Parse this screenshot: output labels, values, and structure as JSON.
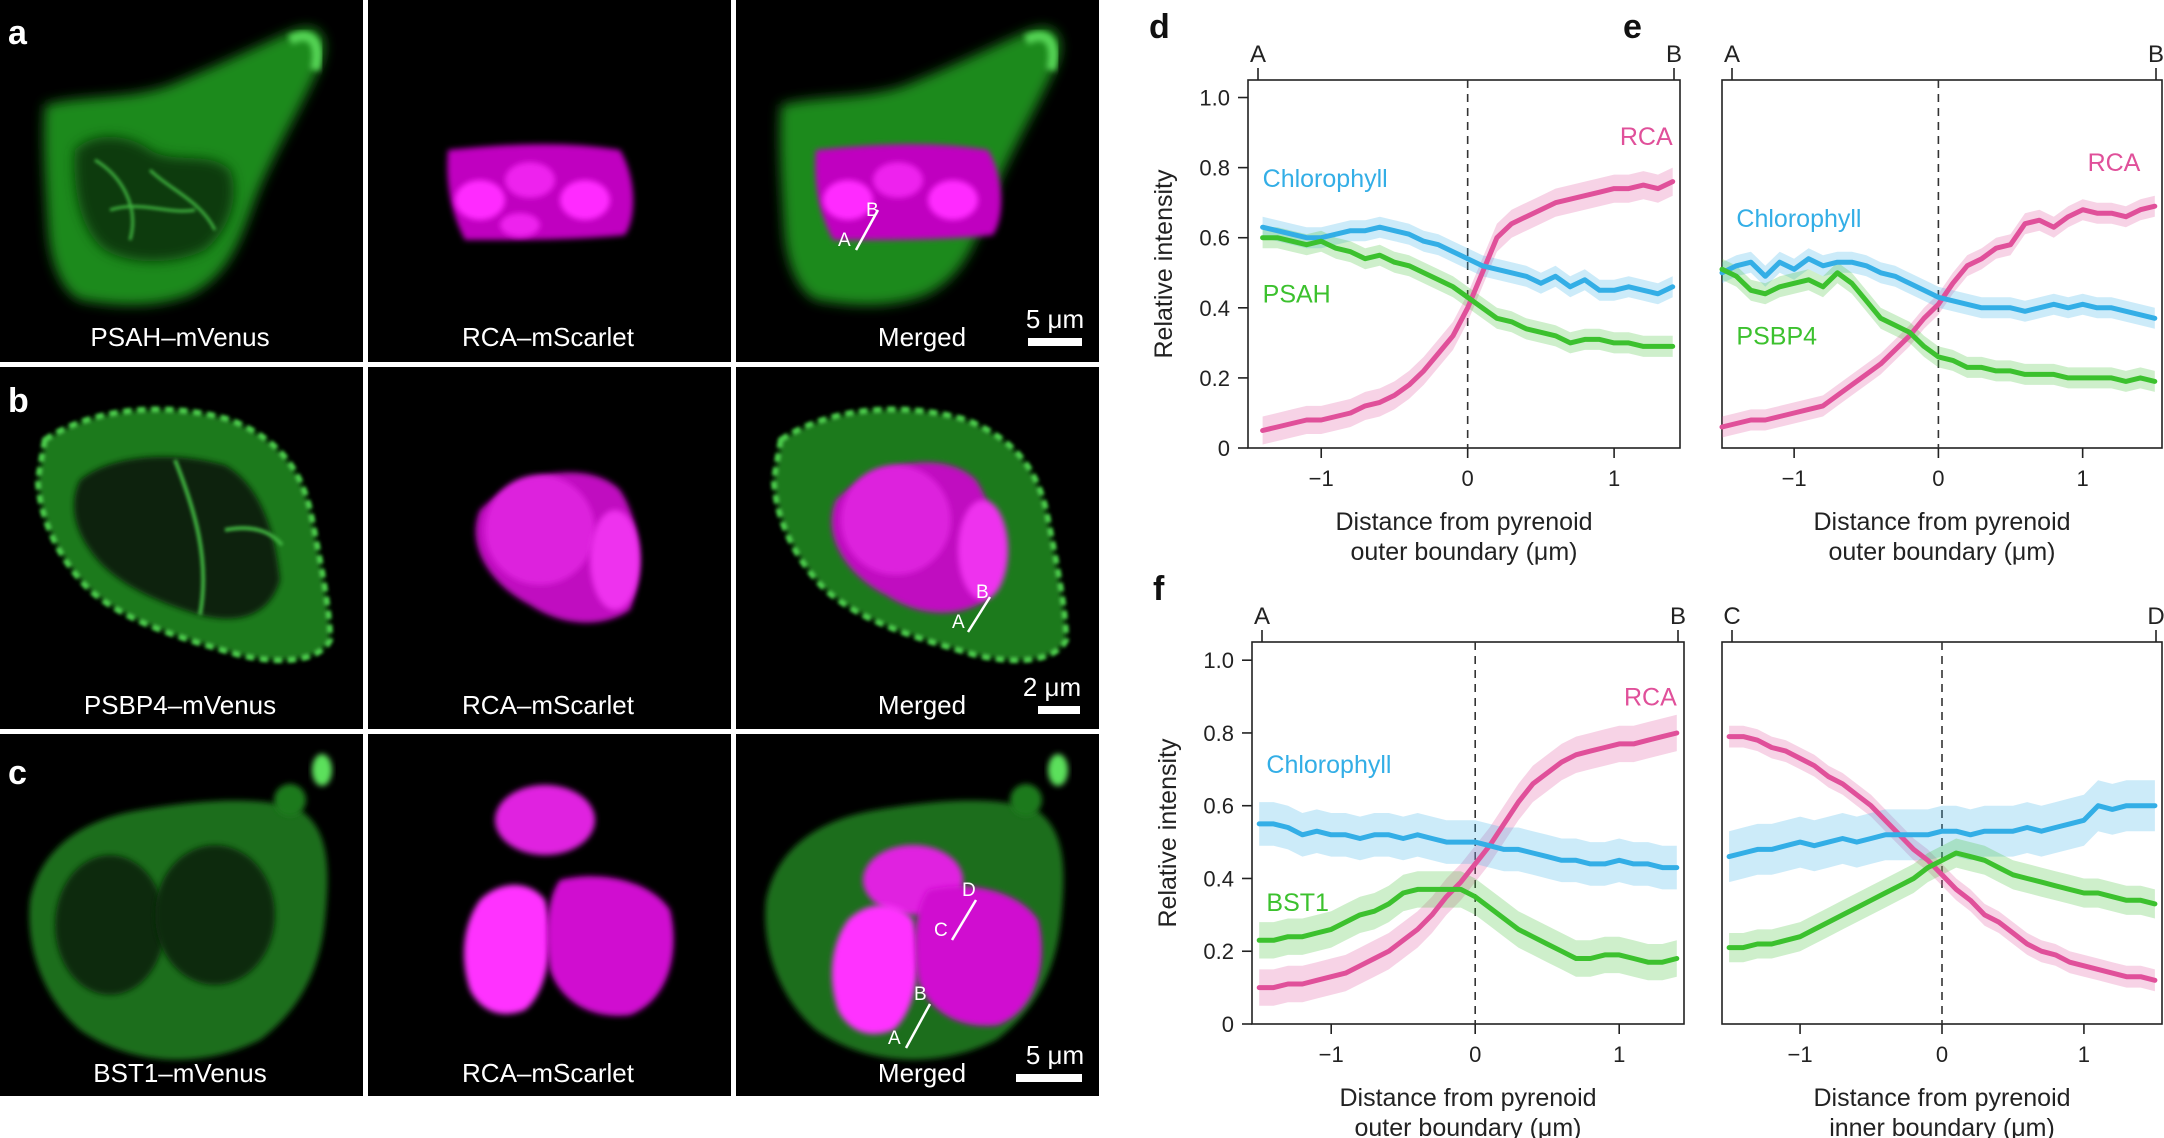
{
  "figure": {
    "rows": [
      {
        "letter": "a",
        "captions": [
          "PSAH–mVenus",
          "RCA–mScarlet",
          "Merged"
        ],
        "scale_bar": "5 μm",
        "line_labels": [
          "A",
          "B"
        ]
      },
      {
        "letter": "b",
        "captions": [
          "PSBP4–mVenus",
          "RCA–mScarlet",
          "Merged"
        ],
        "scale_bar": "2 μm",
        "line_labels": [
          "A",
          "B"
        ]
      },
      {
        "letter": "c",
        "captions": [
          "BST1–mVenus",
          "RCA–mScarlet",
          "Merged"
        ],
        "scale_bar": "5 μm",
        "line_labels": [
          "A",
          "B",
          "C",
          "D"
        ]
      }
    ]
  },
  "colors": {
    "rca": "#e0509a",
    "chlorophyll": "#33aee6",
    "marker": "#3cc12e"
  },
  "chart_data": [
    {
      "id": "d",
      "letter": "d",
      "type": "line",
      "ylabel": "Relative intensity",
      "xlabel": [
        "Distance from pyrenoid",
        "outer boundary (μm)"
      ],
      "xlim": [
        -1.5,
        1.45
      ],
      "ylim": [
        0,
        1.05
      ],
      "xticks": [
        "−1",
        "0",
        "1"
      ],
      "yticks": [
        "0",
        "0.2",
        "0.4",
        "0.6",
        "0.8",
        "1.0"
      ],
      "end_labels": [
        "A",
        "B"
      ],
      "x": [
        -1.4,
        -1.3,
        -1.2,
        -1.1,
        -1.0,
        -0.9,
        -0.8,
        -0.7,
        -0.6,
        -0.5,
        -0.4,
        -0.3,
        -0.2,
        -0.1,
        0.0,
        0.1,
        0.2,
        0.3,
        0.4,
        0.5,
        0.6,
        0.7,
        0.8,
        0.9,
        1.0,
        1.1,
        1.2,
        1.3,
        1.4
      ],
      "series": [
        {
          "name": "RCA",
          "color": "#e0509a",
          "band": 0.04,
          "values": [
            0.05,
            0.06,
            0.07,
            0.08,
            0.08,
            0.09,
            0.1,
            0.12,
            0.13,
            0.15,
            0.18,
            0.22,
            0.27,
            0.32,
            0.4,
            0.5,
            0.6,
            0.64,
            0.66,
            0.68,
            0.7,
            0.71,
            0.72,
            0.73,
            0.74,
            0.74,
            0.75,
            0.74,
            0.76
          ]
        },
        {
          "name": "Chlorophyll",
          "color": "#33aee6",
          "band": 0.03,
          "values": [
            0.63,
            0.62,
            0.61,
            0.6,
            0.6,
            0.61,
            0.62,
            0.62,
            0.63,
            0.62,
            0.61,
            0.59,
            0.58,
            0.56,
            0.54,
            0.52,
            0.51,
            0.5,
            0.49,
            0.47,
            0.49,
            0.46,
            0.48,
            0.45,
            0.45,
            0.46,
            0.45,
            0.44,
            0.46
          ]
        },
        {
          "name": "PSAH",
          "color": "#3cc12e",
          "band": 0.03,
          "values": [
            0.6,
            0.6,
            0.59,
            0.58,
            0.59,
            0.57,
            0.56,
            0.54,
            0.55,
            0.53,
            0.52,
            0.5,
            0.48,
            0.46,
            0.43,
            0.4,
            0.37,
            0.36,
            0.34,
            0.33,
            0.32,
            0.3,
            0.31,
            0.31,
            0.3,
            0.3,
            0.29,
            0.29,
            0.29
          ]
        }
      ]
    },
    {
      "id": "e",
      "letter": "e",
      "type": "line",
      "ylabel": "",
      "xlabel": [
        "Distance from pyrenoid",
        "outer boundary (μm)"
      ],
      "xlim": [
        -1.5,
        1.55
      ],
      "ylim": [
        0,
        1.05
      ],
      "xticks": [
        "−1",
        "0",
        "1"
      ],
      "yticks": [],
      "end_labels": [
        "A",
        "B"
      ],
      "x": [
        -1.5,
        -1.4,
        -1.3,
        -1.2,
        -1.1,
        -1.0,
        -0.9,
        -0.8,
        -0.7,
        -0.6,
        -0.5,
        -0.4,
        -0.3,
        -0.2,
        -0.1,
        0.0,
        0.1,
        0.2,
        0.3,
        0.4,
        0.5,
        0.6,
        0.7,
        0.8,
        0.9,
        1.0,
        1.1,
        1.2,
        1.3,
        1.4,
        1.5
      ],
      "series": [
        {
          "name": "RCA",
          "color": "#e0509a",
          "band": 0.03,
          "values": [
            0.06,
            0.07,
            0.08,
            0.08,
            0.09,
            0.1,
            0.11,
            0.12,
            0.15,
            0.18,
            0.21,
            0.24,
            0.28,
            0.32,
            0.37,
            0.41,
            0.47,
            0.52,
            0.54,
            0.57,
            0.58,
            0.64,
            0.65,
            0.63,
            0.66,
            0.68,
            0.67,
            0.67,
            0.66,
            0.68,
            0.69
          ]
        },
        {
          "name": "Chlorophyll",
          "color": "#33aee6",
          "band": 0.03,
          "values": [
            0.5,
            0.52,
            0.53,
            0.49,
            0.53,
            0.51,
            0.54,
            0.52,
            0.53,
            0.53,
            0.52,
            0.5,
            0.49,
            0.47,
            0.45,
            0.43,
            0.42,
            0.41,
            0.4,
            0.4,
            0.4,
            0.39,
            0.4,
            0.41,
            0.4,
            0.41,
            0.4,
            0.4,
            0.39,
            0.38,
            0.37
          ]
        },
        {
          "name": "PSBP4",
          "color": "#3cc12e",
          "band": 0.03,
          "values": [
            0.51,
            0.49,
            0.45,
            0.44,
            0.46,
            0.47,
            0.48,
            0.46,
            0.5,
            0.47,
            0.42,
            0.37,
            0.35,
            0.33,
            0.29,
            0.26,
            0.25,
            0.23,
            0.23,
            0.22,
            0.22,
            0.21,
            0.21,
            0.21,
            0.2,
            0.2,
            0.2,
            0.2,
            0.19,
            0.2,
            0.19
          ]
        }
      ]
    },
    {
      "id": "f-left",
      "letter": "f",
      "type": "line",
      "ylabel": "Relative intensity",
      "xlabel": [
        "Distance from pyrenoid",
        "outer boundary (μm)"
      ],
      "xlim": [
        -1.55,
        1.45
      ],
      "ylim": [
        0,
        1.05
      ],
      "xticks": [
        "−1",
        "0",
        "1"
      ],
      "yticks": [
        "0",
        "0.2",
        "0.4",
        "0.6",
        "0.8",
        "1.0"
      ],
      "end_labels": [
        "A",
        "B"
      ],
      "x": [
        -1.5,
        -1.4,
        -1.3,
        -1.2,
        -1.1,
        -1.0,
        -0.9,
        -0.8,
        -0.7,
        -0.6,
        -0.5,
        -0.4,
        -0.3,
        -0.2,
        -0.1,
        0.0,
        0.1,
        0.2,
        0.3,
        0.4,
        0.5,
        0.6,
        0.7,
        0.8,
        0.9,
        1.0,
        1.1,
        1.2,
        1.3,
        1.4
      ],
      "series": [
        {
          "name": "RCA",
          "color": "#e0509a",
          "band": 0.05,
          "values": [
            0.1,
            0.1,
            0.11,
            0.11,
            0.12,
            0.13,
            0.14,
            0.16,
            0.18,
            0.2,
            0.23,
            0.26,
            0.3,
            0.35,
            0.39,
            0.44,
            0.49,
            0.55,
            0.61,
            0.66,
            0.69,
            0.72,
            0.74,
            0.75,
            0.76,
            0.77,
            0.77,
            0.78,
            0.79,
            0.8
          ]
        },
        {
          "name": "Chlorophyll",
          "color": "#33aee6",
          "band": 0.06,
          "values": [
            0.55,
            0.55,
            0.54,
            0.52,
            0.53,
            0.52,
            0.52,
            0.51,
            0.52,
            0.52,
            0.51,
            0.52,
            0.51,
            0.5,
            0.5,
            0.5,
            0.49,
            0.48,
            0.48,
            0.47,
            0.46,
            0.45,
            0.45,
            0.44,
            0.44,
            0.45,
            0.44,
            0.44,
            0.43,
            0.43
          ]
        },
        {
          "name": "BST1",
          "color": "#3cc12e",
          "band": 0.05,
          "values": [
            0.23,
            0.23,
            0.24,
            0.24,
            0.25,
            0.26,
            0.28,
            0.3,
            0.31,
            0.33,
            0.36,
            0.37,
            0.37,
            0.37,
            0.37,
            0.35,
            0.32,
            0.29,
            0.26,
            0.24,
            0.22,
            0.2,
            0.18,
            0.18,
            0.19,
            0.19,
            0.18,
            0.17,
            0.17,
            0.18
          ]
        }
      ]
    },
    {
      "id": "f-right",
      "letter": "",
      "type": "line",
      "ylabel": "",
      "xlabel": [
        "Distance from pyrenoid",
        "inner boundary (μm)"
      ],
      "xlim": [
        -1.55,
        1.55
      ],
      "ylim": [
        0,
        1.05
      ],
      "xticks": [
        "−1",
        "0",
        "1"
      ],
      "yticks": [],
      "end_labels": [
        "C",
        "D"
      ],
      "x": [
        -1.5,
        -1.4,
        -1.3,
        -1.2,
        -1.1,
        -1.0,
        -0.9,
        -0.8,
        -0.7,
        -0.6,
        -0.5,
        -0.4,
        -0.3,
        -0.2,
        -0.1,
        0.0,
        0.1,
        0.2,
        0.3,
        0.4,
        0.5,
        0.6,
        0.7,
        0.8,
        0.9,
        1.0,
        1.1,
        1.2,
        1.3,
        1.4,
        1.5
      ],
      "series": [
        {
          "name": "RCA",
          "color": "#e0509a",
          "band": 0.03,
          "values": [
            0.79,
            0.79,
            0.78,
            0.76,
            0.75,
            0.73,
            0.71,
            0.68,
            0.66,
            0.63,
            0.6,
            0.56,
            0.52,
            0.48,
            0.45,
            0.41,
            0.37,
            0.34,
            0.3,
            0.28,
            0.25,
            0.22,
            0.2,
            0.19,
            0.17,
            0.16,
            0.15,
            0.14,
            0.13,
            0.13,
            0.12
          ]
        },
        {
          "name": "Chlorophyll",
          "color": "#33aee6",
          "band": 0.07,
          "values": [
            0.46,
            0.47,
            0.48,
            0.48,
            0.49,
            0.5,
            0.49,
            0.5,
            0.51,
            0.5,
            0.51,
            0.52,
            0.52,
            0.52,
            0.52,
            0.53,
            0.53,
            0.52,
            0.53,
            0.53,
            0.53,
            0.54,
            0.53,
            0.54,
            0.55,
            0.56,
            0.6,
            0.59,
            0.6,
            0.6,
            0.6
          ]
        },
        {
          "name": "",
          "color": "#3cc12e",
          "band": 0.04,
          "values": [
            0.21,
            0.21,
            0.22,
            0.22,
            0.23,
            0.24,
            0.26,
            0.28,
            0.3,
            0.32,
            0.34,
            0.36,
            0.38,
            0.4,
            0.43,
            0.45,
            0.47,
            0.46,
            0.45,
            0.43,
            0.41,
            0.4,
            0.39,
            0.38,
            0.37,
            0.36,
            0.36,
            0.35,
            0.34,
            0.34,
            0.33
          ]
        }
      ]
    }
  ]
}
